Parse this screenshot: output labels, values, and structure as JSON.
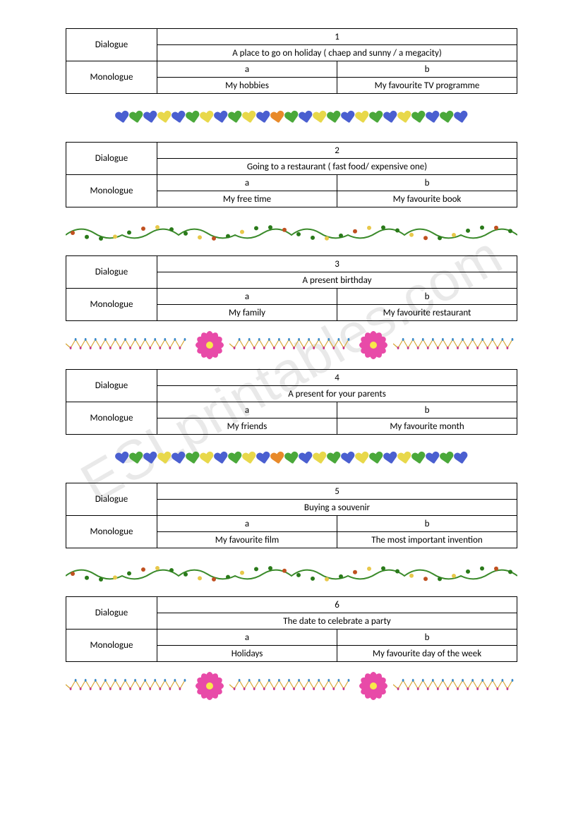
{
  "watermark": "ESLprintables.com",
  "labels": {
    "dialogue": "Dialogue",
    "monologue": "Monologue"
  },
  "cards": [
    {
      "num": "1",
      "dialogue_topic": "A place to go on holiday ( chaep and sunny / a megacity)",
      "mono_a_label": "a",
      "mono_b_label": "b",
      "mono_a": "My hobbies",
      "mono_b": "My favourite TV programme",
      "divider": "hearts"
    },
    {
      "num": "2",
      "dialogue_topic": "Going to a restaurant ( fast food/ expensive one)",
      "mono_a_label": "a",
      "mono_b_label": "b",
      "mono_a": "My free time",
      "mono_b": "My favourite book",
      "divider": "wave"
    },
    {
      "num": "3",
      "dialogue_topic": "A present birthday",
      "mono_a_label": "a",
      "mono_b_label": "b",
      "mono_a": "My family",
      "mono_b": "My favourite restaurant",
      "divider": "zigflower"
    },
    {
      "num": "4",
      "dialogue_topic": "A present for your parents",
      "mono_a_label": "a",
      "mono_b_label": "b",
      "mono_a": "My friends",
      "mono_b": "My favourite month",
      "divider": "hearts"
    },
    {
      "num": "5",
      "dialogue_topic": "Buying a souvenir",
      "mono_a_label": "a",
      "mono_b_label": "b",
      "mono_a": "My favourite film",
      "mono_b": "The most important invention",
      "divider": "wave"
    },
    {
      "num": "6",
      "dialogue_topic": "The date to celebrate a party",
      "mono_a_label": "a",
      "mono_b_label": "b",
      "mono_a": "Holidays",
      "mono_b": "My favourite day of the week",
      "divider": "zigflower"
    }
  ],
  "divider_styles": {
    "hearts": {
      "sequence": [
        "blue",
        "green",
        "blue",
        "yellow",
        "blue",
        "green",
        "yellow",
        "blue",
        "green",
        "yellow",
        "blue",
        "orange",
        "green",
        "blue",
        "yellow",
        "green",
        "blue",
        "yellow",
        "green",
        "blue",
        "yellow",
        "green",
        "blue",
        "green",
        "blue"
      ]
    },
    "wave": {
      "stroke": "#3a8a2a",
      "accent_colors": [
        "#2a7a1a",
        "#c05020",
        "#e8c84a"
      ]
    },
    "zigflower": {
      "zig_stroke": "#d8a83a",
      "dot_colors": [
        "#c83a8a",
        "#3a8ac8"
      ],
      "flower_petal": "#e84aa8",
      "flower_center": "#f8e84a",
      "petal_count": 12
    }
  }
}
